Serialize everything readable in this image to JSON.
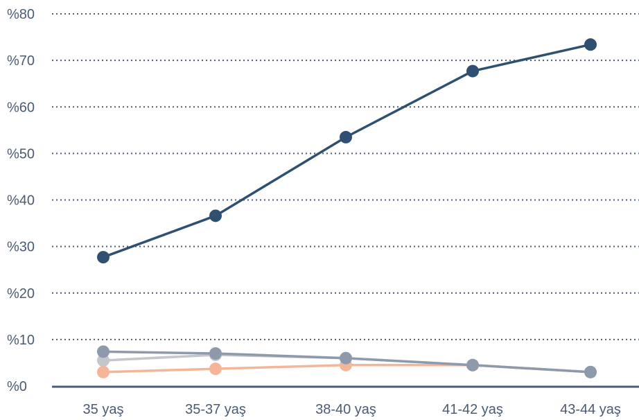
{
  "chart_data": {
    "type": "line",
    "title": "",
    "xlabel": "",
    "ylabel": "",
    "categories": [
      "35 yaş",
      "35-37 yaş",
      "38-40 yaş",
      "41-42 yaş",
      "43-44 yaş"
    ],
    "y_ticks": [
      "%0",
      "%10",
      "%20",
      "%30",
      "%40",
      "%50",
      "%60",
      "%70",
      "%80"
    ],
    "ylim": [
      0,
      80
    ],
    "grid": true,
    "grid_style": "dotted",
    "legend": "none",
    "series": [
      {
        "values": [
          27.7,
          36.6,
          53.5,
          67.7,
          73.4
        ],
        "color": "#2f5070"
      },
      {
        "values": [
          5.5,
          6.7,
          6.0,
          4.5,
          3.0
        ],
        "color": "#c3c6cb"
      },
      {
        "values": [
          3.0,
          3.7,
          4.5,
          4.5,
          3.0
        ],
        "color": "#f5b599"
      },
      {
        "values": [
          7.4,
          7.0,
          6.0,
          4.5,
          3.0
        ],
        "color": "#8e9aab"
      }
    ],
    "colors": {
      "grid": "#4a5b73",
      "axis": "#4a5b73",
      "tick_text": "#4a5b73"
    }
  }
}
